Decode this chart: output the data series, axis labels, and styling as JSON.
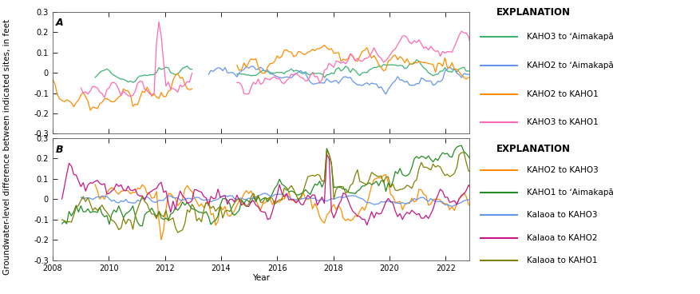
{
  "title_A": "A",
  "title_B": "B",
  "xlabel": "Year",
  "ylabel": "Groundwater-level difference between indicated sites, in feet",
  "ylim": [
    -0.3,
    0.3
  ],
  "yticks": [
    -0.3,
    -0.2,
    -0.1,
    0.0,
    0.1,
    0.2,
    0.3
  ],
  "ytick_labels": [
    "-0.3",
    "-0.2",
    "-0.1",
    "0",
    "0.1",
    "0.2",
    "0.3"
  ],
  "xlim_start": 2008.0,
  "xlim_end": 2022.83,
  "xticks": [
    2008,
    2010,
    2012,
    2014,
    2016,
    2018,
    2020,
    2022
  ],
  "panel_A": {
    "series": [
      {
        "label": "KAHO3 to ʻAimakapā",
        "color": "#3cb371",
        "lw": 0.9
      },
      {
        "label": "KAHO2 to ʻAimakapā",
        "color": "#6495ed",
        "lw": 0.9
      },
      {
        "label": "KAHO2 to KAHO1",
        "color": "#ff8c00",
        "lw": 0.9
      },
      {
        "label": "KAHO3 to KAHO1",
        "color": "#ff69b4",
        "lw": 0.9
      }
    ]
  },
  "panel_B": {
    "series": [
      {
        "label": "KAHO2 to KAHO3",
        "color": "#ff8c00",
        "lw": 0.9
      },
      {
        "label": "KAHO1 to ʻAimakapā",
        "color": "#228b22",
        "lw": 0.9
      },
      {
        "label": "Kalaoa to KAHO3",
        "color": "#6495ed",
        "lw": 0.9
      },
      {
        "label": "Kalaoa to KAHO2",
        "color": "#c71585",
        "lw": 0.9
      },
      {
        "label": "Kalaoa to KAHO1",
        "color": "#808000",
        "lw": 0.9
      }
    ]
  },
  "explanation_fontsize": 8.5,
  "legend_fontsize": 7.5,
  "tick_fontsize": 7,
  "label_fontsize": 7.5,
  "panel_label_fontsize": 9
}
